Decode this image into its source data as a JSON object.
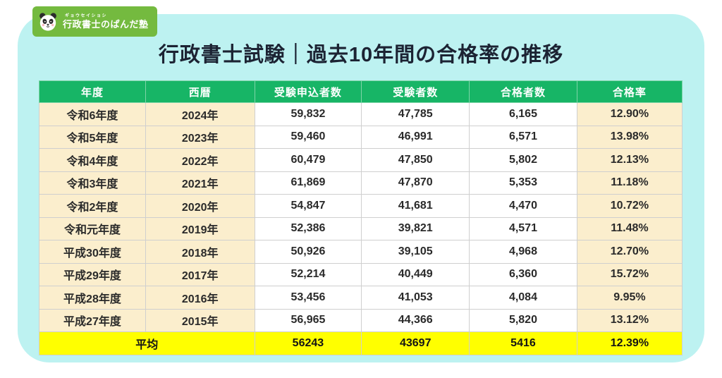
{
  "logo": {
    "furigana": "ギョウセイショシ",
    "name": "行政書士のぱんだ塾"
  },
  "chart_data": {
    "type": "table",
    "title": "行政書士試験｜過去10年間の合格率の推移",
    "columns": [
      "年度",
      "西暦",
      "受験申込者数",
      "受験者数",
      "合格者数",
      "合格率"
    ],
    "rows": [
      [
        "令和6年度",
        "2024年",
        "59,832",
        "47,785",
        "6,165",
        "12.90%"
      ],
      [
        "令和5年度",
        "2023年",
        "59,460",
        "46,991",
        "6,571",
        "13.98%"
      ],
      [
        "令和4年度",
        "2022年",
        "60,479",
        "47,850",
        "5,802",
        "12.13%"
      ],
      [
        "令和3年度",
        "2021年",
        "61,869",
        "47,870",
        "5,353",
        "11.18%"
      ],
      [
        "令和2年度",
        "2020年",
        "54,847",
        "41,681",
        "4,470",
        "10.72%"
      ],
      [
        "令和元年度",
        "2019年",
        "52,386",
        "39,821",
        "4,571",
        "11.48%"
      ],
      [
        "平成30年度",
        "2018年",
        "50,926",
        "39,105",
        "4,968",
        "12.70%"
      ],
      [
        "平成29年度",
        "2017年",
        "52,214",
        "40,449",
        "6,360",
        "15.72%"
      ],
      [
        "平成28年度",
        "2016年",
        "53,456",
        "41,053",
        "4,084",
        "9.95%"
      ],
      [
        "平成27年度",
        "2015年",
        "56,965",
        "44,366",
        "5,820",
        "13.12%"
      ]
    ],
    "average": {
      "label": "平均",
      "values": [
        "56243",
        "43697",
        "5416",
        "12.39%"
      ]
    }
  },
  "colors": {
    "panel_bg": "#bdf2f1",
    "logo_green": "#74ba3f",
    "header_green": "#17b566",
    "header_text": "#ffffff",
    "row_cream": "#fbeecd",
    "cell_white": "#ffffff",
    "average_yellow": "#ffff00",
    "title_text": "#1c2333",
    "body_text": "#2a2a2a"
  }
}
